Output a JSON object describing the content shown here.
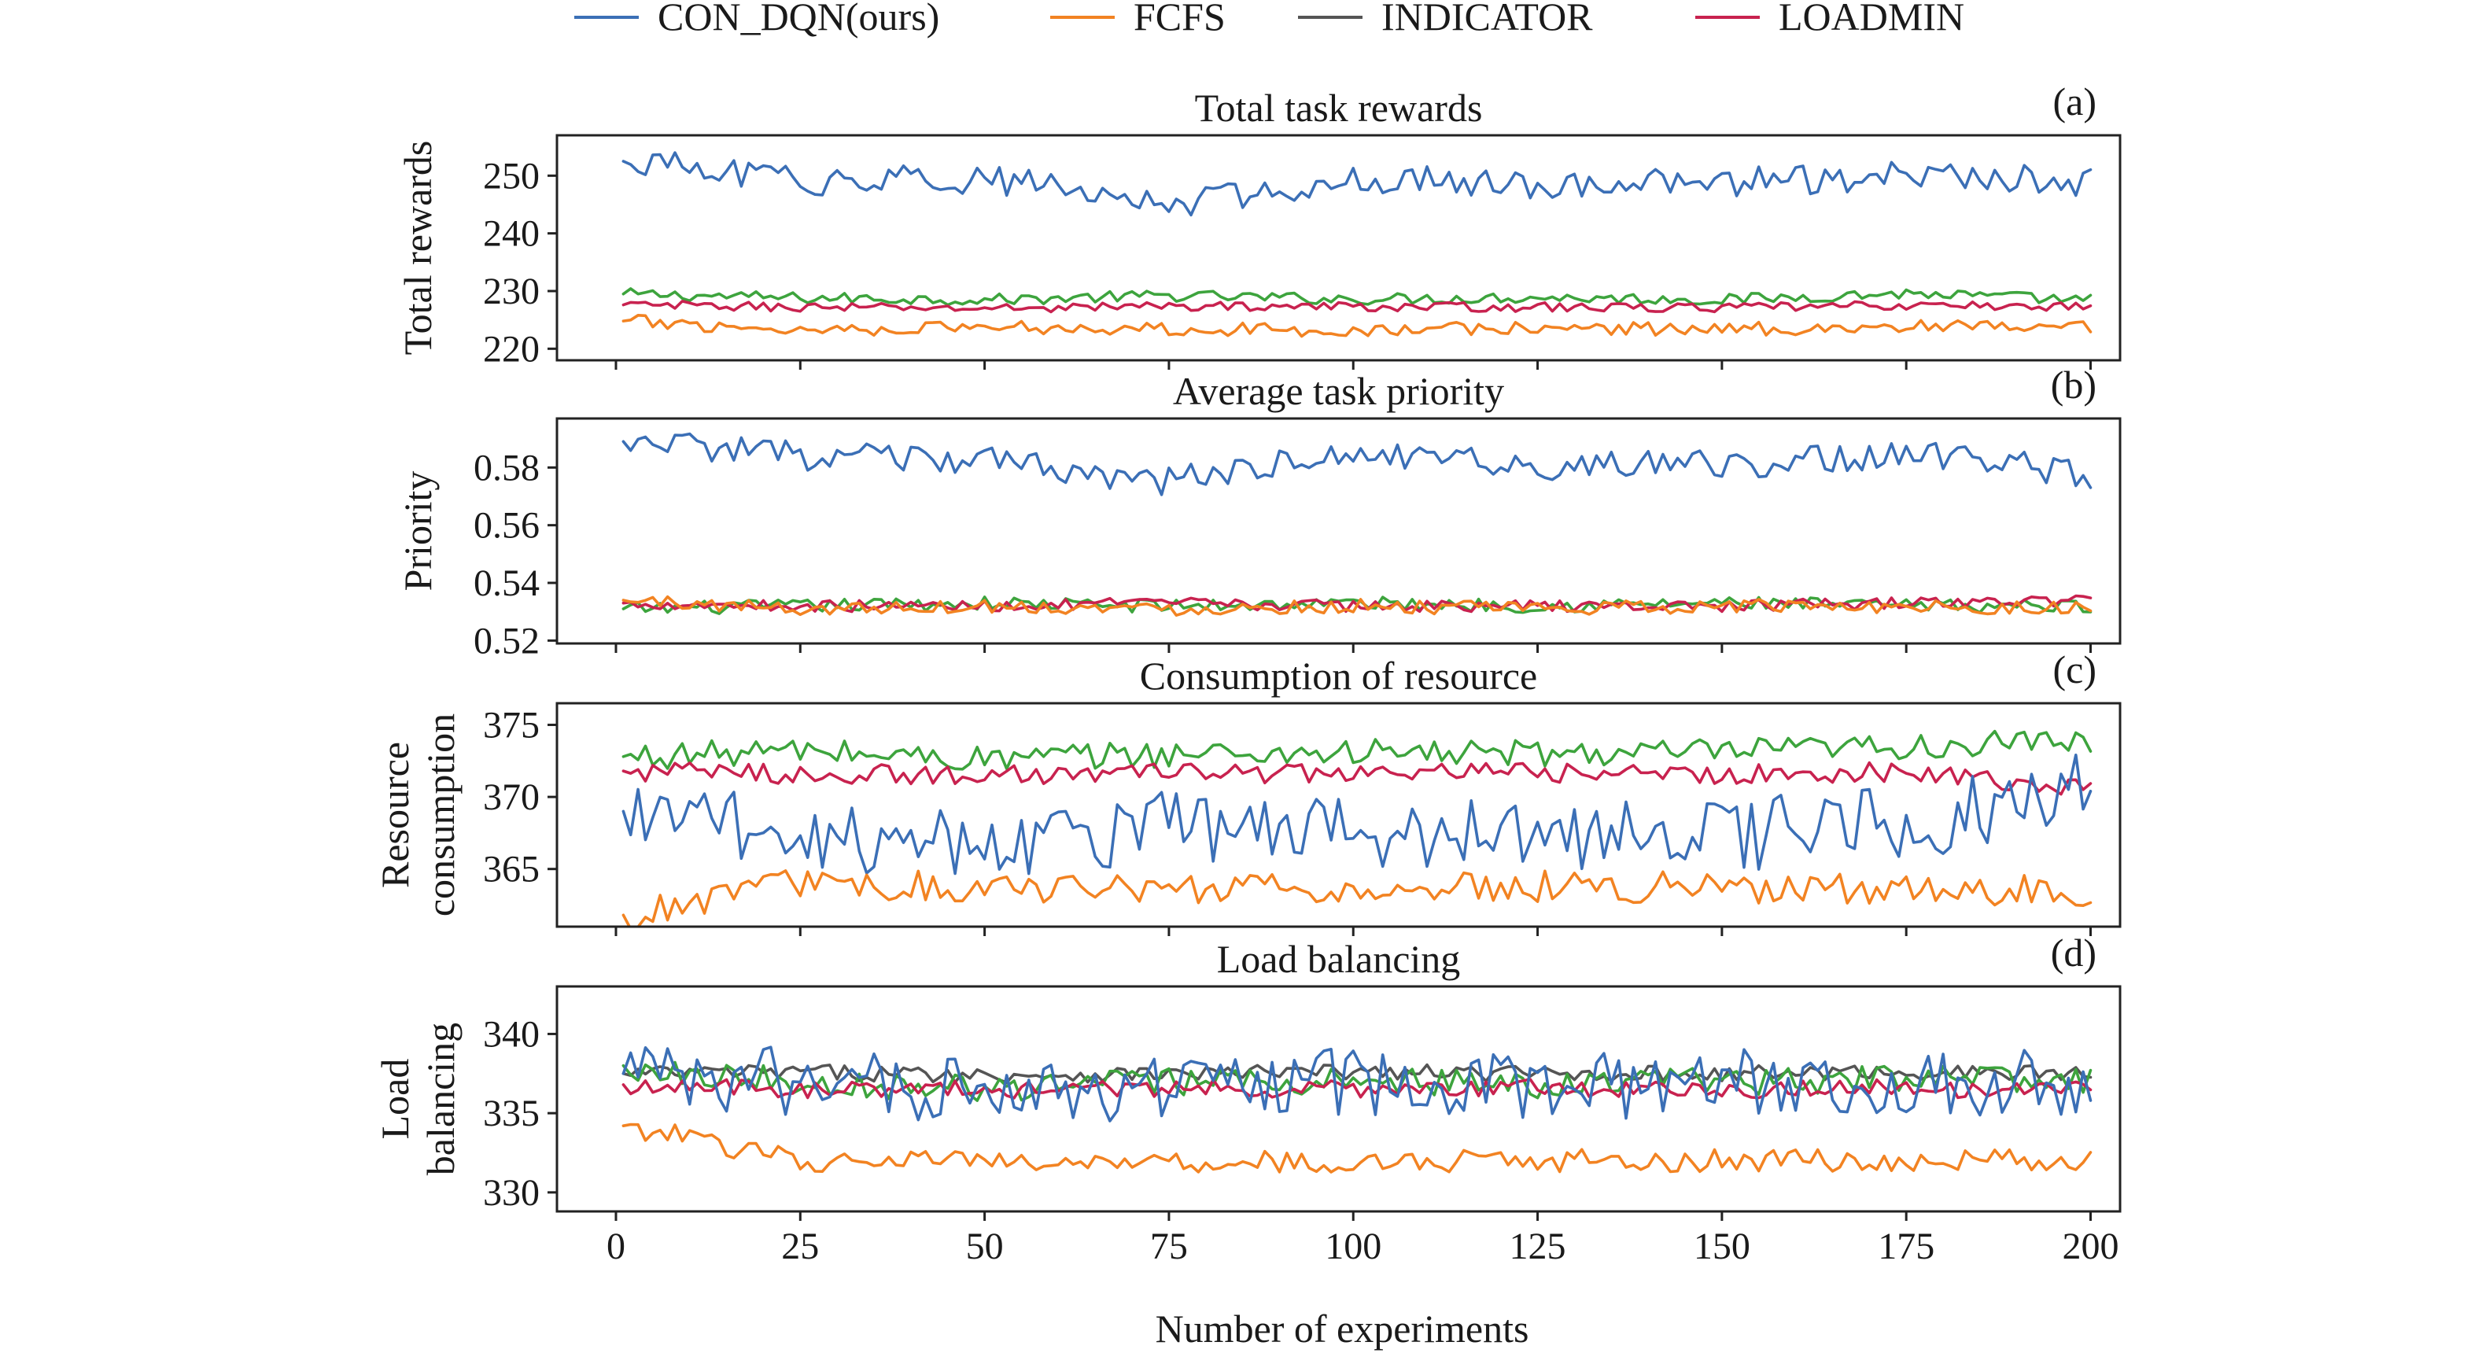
{
  "legend": [
    {
      "label": "CON_DQN(ours)",
      "color": "#3b6fb6"
    },
    {
      "label": "FCFS",
      "color": "#f28322"
    },
    {
      "label": "INDICATOR",
      "color": "#555555"
    },
    {
      "label": "LOADMIN",
      "color": "#c8224f"
    }
  ],
  "extra_color": "#3da43d",
  "xlabel": "Number of experiments",
  "chart_data": [
    {
      "type": "line",
      "title": "Total task rewards",
      "panel_letter": "(a)",
      "ylabel": [
        "Total rewards"
      ],
      "xlim": [
        -8,
        204
      ],
      "ylim": [
        218,
        257
      ],
      "yticks": [
        220,
        230,
        240,
        250
      ],
      "xticks": [
        0,
        25,
        50,
        75,
        100,
        125,
        150,
        175,
        200
      ],
      "series": [
        {
          "key": "green",
          "x": [
            1,
            25,
            50,
            75,
            100,
            125,
            150,
            175,
            200
          ],
          "values": [
            229.5,
            228.8,
            228.5,
            229.2,
            228.6,
            228.9,
            228.5,
            229.6,
            228.4
          ]
        },
        {
          "key": "loadmin",
          "x": [
            1,
            25,
            50,
            75,
            100,
            125,
            150,
            175,
            200
          ],
          "values": [
            227.6,
            227.2,
            227.0,
            227.4,
            227.3,
            227.2,
            227.1,
            227.5,
            227.3
          ]
        },
        {
          "key": "fcfs",
          "x": [
            1,
            25,
            50,
            75,
            100,
            125,
            150,
            175,
            200
          ],
          "values": [
            224.8,
            223.3,
            223.8,
            223.5,
            223.2,
            223.6,
            223.4,
            223.8,
            223.5
          ]
        },
        {
          "key": "con",
          "x": [
            1,
            25,
            50,
            75,
            100,
            125,
            150,
            175,
            200
          ],
          "values": [
            252.5,
            249.0,
            249.5,
            245.0,
            249.5,
            248.5,
            248.8,
            250.0,
            249.0
          ]
        }
      ]
    },
    {
      "type": "line",
      "title": "Average task priority",
      "panel_letter": "(b)",
      "ylabel": [
        "Priority"
      ],
      "xlim": [
        -8,
        204
      ],
      "ylim": [
        0.519,
        0.597
      ],
      "yticks": [
        0.52,
        0.54,
        0.56,
        0.58
      ],
      "ytick_labels": [
        "0.52",
        "0.54",
        "0.56",
        "0.58"
      ],
      "xticks": [
        0,
        25,
        50,
        75,
        100,
        125,
        150,
        175,
        200
      ],
      "series": [
        {
          "key": "green",
          "x": [
            1,
            25,
            50,
            75,
            100,
            125,
            150,
            175,
            200
          ],
          "values": [
            0.531,
            0.532,
            0.533,
            0.532,
            0.533,
            0.532,
            0.533,
            0.532,
            0.532
          ]
        },
        {
          "key": "loadmin",
          "x": [
            1,
            25,
            50,
            75,
            100,
            125,
            150,
            175,
            200
          ],
          "values": [
            0.533,
            0.532,
            0.532,
            0.533,
            0.532,
            0.532,
            0.532,
            0.533,
            0.534
          ]
        },
        {
          "key": "fcfs",
          "x": [
            1,
            25,
            50,
            75,
            100,
            125,
            150,
            175,
            200
          ],
          "values": [
            0.534,
            0.531,
            0.532,
            0.531,
            0.532,
            0.531,
            0.532,
            0.532,
            0.531
          ]
        },
        {
          "key": "con",
          "x": [
            1,
            25,
            50,
            75,
            100,
            125,
            150,
            175,
            200
          ],
          "values": [
            0.589,
            0.584,
            0.582,
            0.575,
            0.585,
            0.58,
            0.581,
            0.585,
            0.578
          ]
        }
      ]
    },
    {
      "type": "line",
      "title": "Consumption of resource",
      "panel_letter": "(c)",
      "ylabel": [
        "Resource",
        "consumption"
      ],
      "xlim": [
        -8,
        204
      ],
      "ylim": [
        361,
        376.5
      ],
      "yticks": [
        365,
        370,
        375
      ],
      "xticks": [
        0,
        25,
        50,
        75,
        100,
        125,
        150,
        175,
        200
      ],
      "series": [
        {
          "key": "green",
          "x": [
            1,
            25,
            50,
            75,
            100,
            125,
            150,
            175,
            200
          ],
          "values": [
            372.8,
            373.2,
            372.6,
            373.0,
            373.1,
            373.0,
            373.1,
            373.5,
            373.8
          ]
        },
        {
          "key": "loadmin",
          "x": [
            1,
            25,
            50,
            75,
            100,
            125,
            150,
            175,
            200
          ],
          "values": [
            371.8,
            371.6,
            371.5,
            371.7,
            371.6,
            371.7,
            371.5,
            371.8,
            370.5
          ]
        },
        {
          "key": "con",
          "x": [
            1,
            25,
            50,
            75,
            100,
            125,
            150,
            175,
            200
          ],
          "values": [
            369.0,
            367.5,
            367.0,
            368.0,
            367.5,
            367.5,
            367.5,
            368.0,
            370.6
          ]
        },
        {
          "key": "fcfs",
          "x": [
            1,
            25,
            50,
            75,
            100,
            125,
            150,
            175,
            200
          ],
          "values": [
            361.8,
            364.0,
            363.8,
            363.5,
            363.6,
            363.8,
            363.7,
            363.6,
            363.5
          ]
        }
      ]
    },
    {
      "type": "line",
      "title": "Load balancing",
      "panel_letter": "(d)",
      "ylabel": [
        "Load",
        "balancing"
      ],
      "xlim": [
        -8,
        204
      ],
      "ylim": [
        328.8,
        343
      ],
      "yticks": [
        330,
        335,
        340
      ],
      "xticks": [
        0,
        25,
        50,
        75,
        100,
        125,
        150,
        175,
        200
      ],
      "series": [
        {
          "key": "indicator",
          "x": [
            1,
            25,
            50,
            75,
            100,
            125,
            150,
            175,
            200
          ],
          "values": [
            337.5,
            337.6,
            337.4,
            337.5,
            337.6,
            337.5,
            337.5,
            337.6,
            337.5
          ]
        },
        {
          "key": "green",
          "x": [
            1,
            25,
            50,
            75,
            100,
            125,
            150,
            175,
            200
          ],
          "values": [
            338.0,
            337.0,
            336.5,
            337.0,
            337.0,
            336.8,
            337.0,
            337.2,
            337.0
          ]
        },
        {
          "key": "loadmin",
          "x": [
            1,
            25,
            50,
            75,
            100,
            125,
            150,
            175,
            200
          ],
          "values": [
            336.8,
            336.5,
            336.5,
            336.6,
            336.5,
            336.6,
            336.5,
            336.6,
            336.4
          ]
        },
        {
          "key": "con",
          "x": [
            1,
            25,
            50,
            75,
            100,
            125,
            150,
            175,
            200
          ],
          "values": [
            337.5,
            337.0,
            336.5,
            336.5,
            337.0,
            336.5,
            337.0,
            337.0,
            337.0
          ]
        },
        {
          "key": "fcfs",
          "x": [
            1,
            25,
            50,
            75,
            100,
            125,
            150,
            175,
            200
          ],
          "values": [
            334.2,
            332.0,
            332.0,
            331.8,
            332.0,
            332.0,
            332.0,
            332.0,
            332.0
          ]
        }
      ]
    }
  ]
}
